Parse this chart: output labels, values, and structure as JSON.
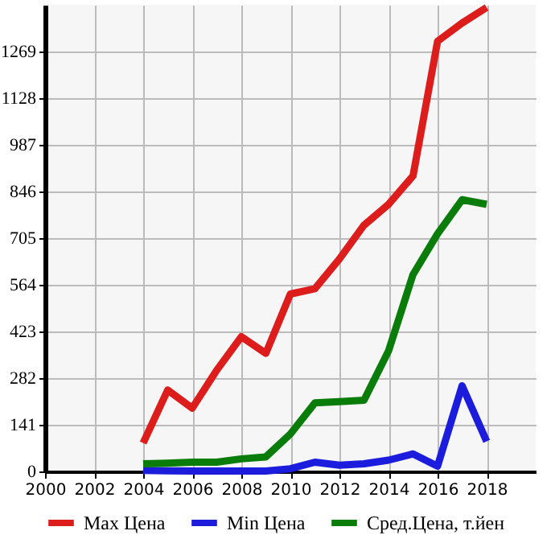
{
  "chart_data": {
    "type": "line",
    "x": [
      2004,
      2005,
      2006,
      2007,
      2008,
      2009,
      2010,
      2011,
      2012,
      2013,
      2014,
      2015,
      2016,
      2017,
      2018
    ],
    "series": [
      {
        "name": "Max Цена",
        "color": "#dd1c1c",
        "values": [
          86,
          246,
          191,
          306,
          407,
          357,
          536,
          552,
          642,
          744,
          807,
          893,
          1300,
          1355,
          1402
        ]
      },
      {
        "name": "Min Цена",
        "color": "#1c1cdd",
        "values": [
          3,
          2,
          1,
          1,
          1,
          1,
          8,
          28,
          19,
          23,
          34,
          53,
          16,
          259,
          91
        ]
      },
      {
        "name": "Сред.Цена, т.йен",
        "color": "#0a7c0a",
        "values": [
          23,
          25,
          28,
          28,
          38,
          44,
          113,
          207,
          211,
          215,
          364,
          595,
          718,
          821,
          807
        ]
      }
    ],
    "xlim": [
      2000,
      2020
    ],
    "xticks": [
      2000,
      2002,
      2004,
      2006,
      2008,
      2010,
      2012,
      2014,
      2016,
      2018
    ],
    "ylim": [
      0,
      1410
    ],
    "yticks": [
      0,
      141,
      282,
      423,
      564,
      705,
      846,
      987,
      1128,
      1269
    ],
    "grid": true,
    "legend": "bottom",
    "marker": "none",
    "line_style": "solid"
  }
}
